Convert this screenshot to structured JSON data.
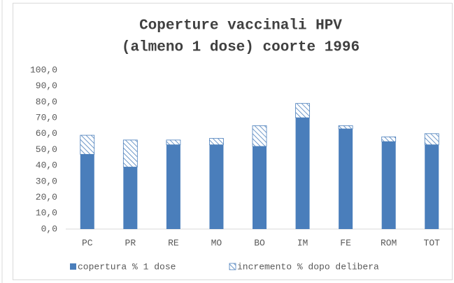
{
  "chart_data": {
    "type": "bar",
    "stacked": true,
    "title": [
      "Coperture vaccinali HPV",
      "(almeno 1 dose) coorte 1996"
    ],
    "categories": [
      "PC",
      "PR",
      "RE",
      "MO",
      "BO",
      "IM",
      "FE",
      "ROM",
      "TOT"
    ],
    "series": [
      {
        "name": "copertura % 1 dose",
        "color": "#4a7ebb",
        "values": [
          47,
          39,
          53,
          53,
          52,
          70,
          63,
          55,
          53
        ]
      },
      {
        "name": "incremento % dopo delibera",
        "color": "#4a7ebb",
        "pattern": "hatch",
        "values": [
          12,
          17,
          3,
          4,
          13,
          9,
          2,
          3,
          7
        ]
      }
    ],
    "ylim": [
      0,
      100
    ],
    "yticks": [
      {
        "value": 0,
        "label": "0,0"
      },
      {
        "value": 10,
        "label": "10,0"
      },
      {
        "value": 20,
        "label": "20,0"
      },
      {
        "value": 30,
        "label": "30,0"
      },
      {
        "value": 40,
        "label": "40,0"
      },
      {
        "value": 50,
        "label": "50,0"
      },
      {
        "value": 60,
        "label": "60,0"
      },
      {
        "value": 70,
        "label": "70,0"
      },
      {
        "value": 80,
        "label": "80,0"
      },
      {
        "value": 90,
        "label": "90,0"
      },
      {
        "value": 100,
        "label": "100,0"
      }
    ],
    "grid": false,
    "legend": "bottom"
  }
}
